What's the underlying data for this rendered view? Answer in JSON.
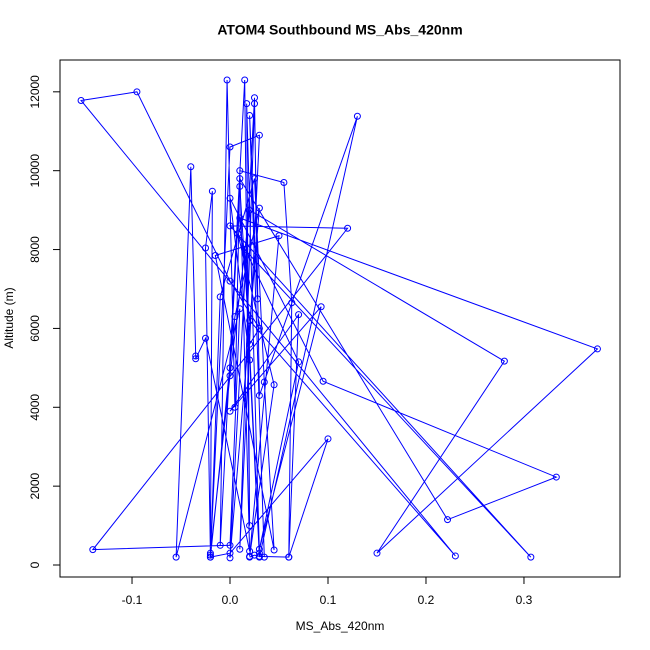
{
  "chart_data": {
    "type": "line",
    "title": "ATOM4 Southbound MS_Abs_420nm",
    "x_label": "MS_Abs_420nm",
    "y_label": "Altitude (m)",
    "color": "#0000ff",
    "markers": "circle",
    "x": [
      0.02,
      0.025,
      0.03,
      0.06,
      0.1,
      0.0,
      -0.02,
      0.0,
      0.01,
      0.02,
      0.03,
      0.0,
      -0.095,
      -0.152,
      0.23,
      0.02,
      0.01,
      0.375,
      0.15,
      0.28,
      0.02,
      0.0,
      -0.02,
      -0.025,
      -0.018,
      -0.02,
      0.0,
      0.03,
      0.01,
      0.025,
      0.03,
      0.13,
      0.03,
      0.02,
      0.0,
      0.095,
      0.333,
      0.222,
      0.01,
      0.005,
      -0.003,
      -0.01,
      0.015,
      0.02,
      0.017,
      0.03,
      0.015,
      0.307,
      0.0,
      0.12,
      -0.14,
      0.0,
      0.01,
      -0.055,
      -0.04,
      -0.035,
      -0.035,
      -0.025,
      0.02,
      0.01,
      0.055,
      0.063,
      0.06,
      0.07,
      0.0,
      0.093,
      0.03,
      0.07,
      0.008,
      0.045,
      0.02,
      0.05,
      -0.015,
      0.045,
      0.035,
      0.025,
      -0.01,
      -0.02,
      0.005,
      0.03,
      0.0,
      0.025,
      0.028,
      0.02,
      0.035
    ],
    "values": [
      200,
      250,
      220,
      200,
      3200,
      300,
      200,
      5000,
      9600,
      5600,
      6000,
      7200,
      12000,
      11780,
      230,
      6200,
      8800,
      5480,
      300,
      5170,
      9000,
      4800,
      300,
      8040,
      9480,
      250,
      10600,
      10900,
      400,
      11700,
      4300,
      11380,
      200,
      5200,
      9300,
      4660,
      2230,
      1150,
      9800,
      4000,
      12300,
      500,
      12300,
      1000,
      11700,
      300,
      8000,
      200,
      8600,
      8540,
      390,
      500,
      6500,
      200,
      10100,
      5300,
      5230,
      5750,
      350,
      10000,
      9700,
      6650,
      200,
      6350,
      3900,
      6550,
      400,
      5150,
      8400,
      4570,
      220,
      8350,
      7850,
      380,
      4640,
      9800,
      6800,
      200,
      6300,
      9050,
      180,
      11850,
      6750,
      11400,
      200
    ],
    "xlim": [
      -0.1735,
      0.398
    ],
    "ylim": [
      -304,
      12807
    ],
    "xticks": [
      -0.1,
      {
        "value": 0,
        "label": "0.0"
      },
      0.1,
      0.2,
      0.3
    ],
    "yticks": [
      0,
      2000,
      4000,
      6000,
      8000,
      10000,
      12000
    ]
  }
}
